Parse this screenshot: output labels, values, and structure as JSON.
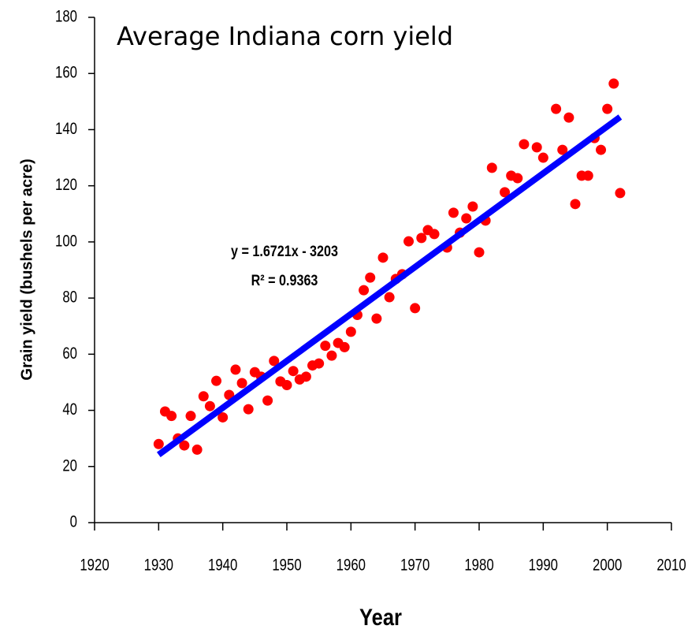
{
  "chart_data": {
    "type": "scatter",
    "title": "Average Indiana corn yield",
    "x_label": "Year",
    "y_label": "Grain yield (bushels per acre)",
    "x": [
      1930,
      1931,
      1932,
      1933,
      1934,
      1935,
      1936,
      1937,
      1938,
      1939,
      1940,
      1941,
      1942,
      1943,
      1944,
      1945,
      1946,
      1947,
      1948,
      1949,
      1950,
      1951,
      1952,
      1953,
      1954,
      1955,
      1956,
      1957,
      1958,
      1959,
      1960,
      1961,
      1962,
      1963,
      1964,
      1965,
      1966,
      1967,
      1968,
      1969,
      1970,
      1971,
      1972,
      1973,
      1975,
      1976,
      1977,
      1978,
      1979,
      1980,
      1981,
      1982,
      1984,
      1985,
      1986,
      1987,
      1989,
      1990,
      1992,
      1993,
      1994,
      1995,
      1996,
      1997,
      1998,
      1999,
      2000,
      2001,
      2002
    ],
    "values": [
      28,
      39.6,
      38,
      30,
      27.5,
      38,
      26,
      45,
      41.5,
      50.5,
      37.5,
      45.5,
      54.5,
      49.7,
      40.4,
      53.6,
      52,
      43.5,
      57.6,
      50.3,
      49,
      54,
      51,
      52,
      56,
      56.7,
      63,
      59.5,
      64,
      62.5,
      68,
      74,
      82.8,
      87.3,
      72.7,
      94.4,
      80.3,
      86.8,
      88.5,
      100.2,
      76.4,
      101.4,
      104.2,
      102.8,
      98,
      110.4,
      103.3,
      108.4,
      112.6,
      96.3,
      107.6,
      126.4,
      117.7,
      123.6,
      122.7,
      134.8,
      133.7,
      130,
      147.4,
      132.8,
      144.3,
      113.5,
      123.6,
      123.6,
      137,
      132.8,
      147.4,
      156.4,
      117.4
    ],
    "color": "#ff0000",
    "trendline": {
      "x": [
        1930,
        2002
      ],
      "values": [
        24.2,
        144.5
      ],
      "color": "#0000ff"
    },
    "annotations": [
      "y = 1.6721x - 3203",
      "R² = 0.9363"
    ],
    "xlim": [
      1920,
      2010
    ],
    "xticks": [
      1920,
      1930,
      1940,
      1950,
      1960,
      1970,
      1980,
      1990,
      2000,
      2010
    ],
    "ylim": [
      0,
      180
    ],
    "yticks": [
      0,
      20,
      40,
      60,
      80,
      100,
      120,
      140,
      160,
      180
    ]
  }
}
